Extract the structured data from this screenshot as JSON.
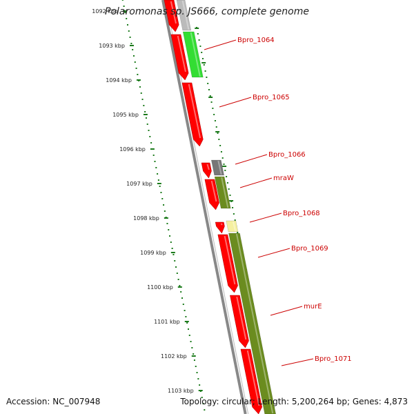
{
  "title": "Polaromonas sp. JS666, complete genome",
  "footer": {
    "accession": "Accession: NC_007948",
    "summary": "Topology: circular; Length: 5,200,264 bp; Genes: 4,873"
  },
  "scale": {
    "unit": "kbp",
    "ticks": [
      1092,
      1093,
      1094,
      1095,
      1096,
      1097,
      1098,
      1099,
      1100,
      1101,
      1102,
      1103
    ]
  },
  "colors": {
    "forward_strand": "#ff0000",
    "reverse_light_green": "#33dd33",
    "reverse_olive": "#6b8c1f",
    "reverse_gray": "#777777",
    "reverse_pale_yellow": "#f5f0a0",
    "label_color": "#cc0000",
    "tick_color": "#1a7a1a",
    "backbone": "#888888"
  },
  "gene_labels": [
    "Bpro_1064",
    "Bpro_1065",
    "Bpro_1066",
    "mraW",
    "Bpro_1068",
    "Bpro_1069",
    "murE",
    "Bpro_1071"
  ]
}
